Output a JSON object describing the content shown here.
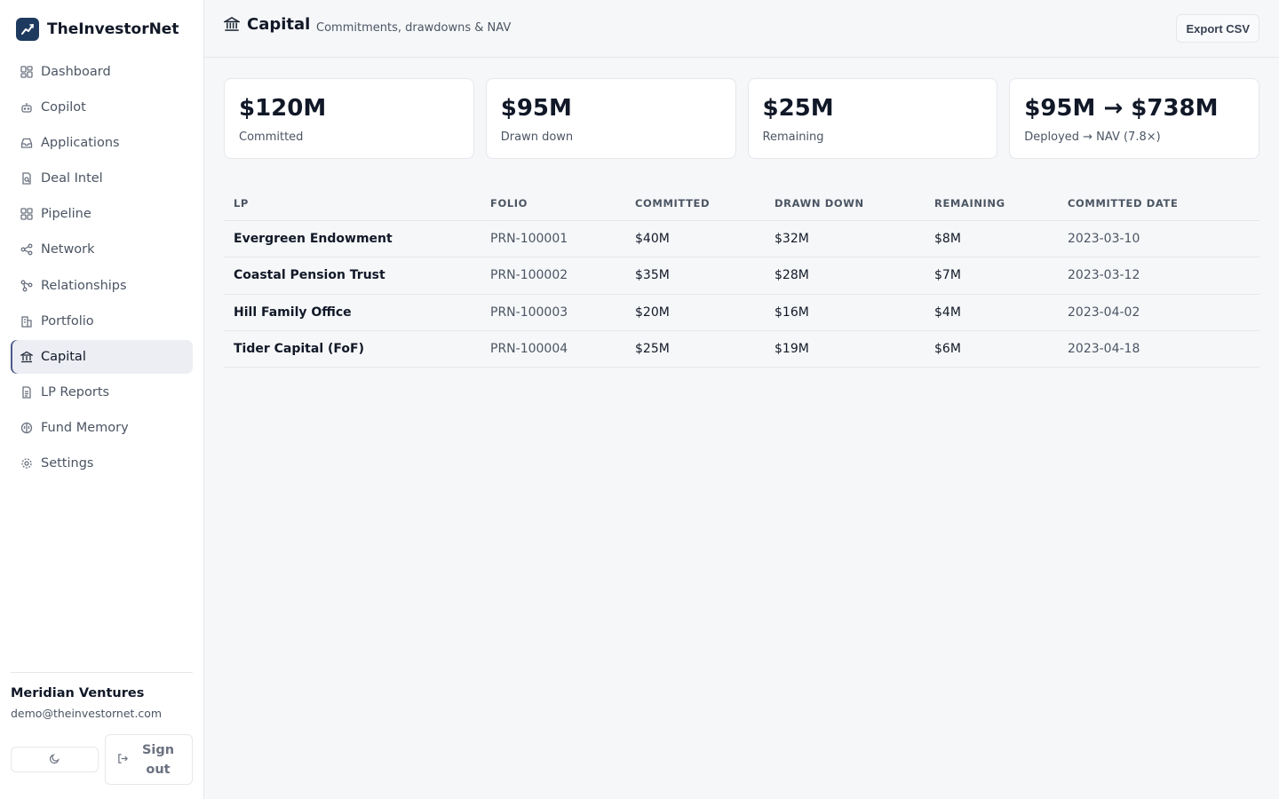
{
  "brand": {
    "name": "TheInvestorNet"
  },
  "sidebar": {
    "items": [
      {
        "label": "Dashboard",
        "icon": "dashboard-icon"
      },
      {
        "label": "Copilot",
        "icon": "robot-icon"
      },
      {
        "label": "Applications",
        "icon": "inbox-icon"
      },
      {
        "label": "Deal Intel",
        "icon": "document-search-icon"
      },
      {
        "label": "Pipeline",
        "icon": "grid-icon"
      },
      {
        "label": "Network",
        "icon": "share-icon"
      },
      {
        "label": "Relationships",
        "icon": "nodes-icon"
      },
      {
        "label": "Portfolio",
        "icon": "buildings-icon"
      },
      {
        "label": "Capital",
        "icon": "bank-icon",
        "active": true
      },
      {
        "label": "LP Reports",
        "icon": "file-text-icon"
      },
      {
        "label": "Fund Memory",
        "icon": "brain-icon"
      },
      {
        "label": "Settings",
        "icon": "gear-icon"
      }
    ],
    "footer": {
      "org_name": "Meridian Ventures",
      "email": "demo@theinvestornet.com",
      "signout_label": "Sign out"
    }
  },
  "header": {
    "title": "Capital",
    "subtitle": "Commitments, drawdowns & NAV",
    "export_label": "Export CSV"
  },
  "stats": [
    {
      "value": "$120M",
      "label": "Committed"
    },
    {
      "value": "$95M",
      "label": "Drawn down"
    },
    {
      "value": "$25M",
      "label": "Remaining"
    },
    {
      "value": "$95M → $738M",
      "label": "Deployed → NAV (7.8×)"
    }
  ],
  "table": {
    "columns": [
      "LP",
      "FOLIO",
      "COMMITTED",
      "DRAWN DOWN",
      "REMAINING",
      "COMMITTED DATE"
    ],
    "rows": [
      {
        "lp": "Evergreen Endowment",
        "folio": "PRN-100001",
        "committed": "$40M",
        "drawn": "$32M",
        "remaining": "$8M",
        "date": "2023-03-10"
      },
      {
        "lp": "Coastal Pension Trust",
        "folio": "PRN-100002",
        "committed": "$35M",
        "drawn": "$28M",
        "remaining": "$7M",
        "date": "2023-03-12"
      },
      {
        "lp": "Hill Family Office",
        "folio": "PRN-100003",
        "committed": "$20M",
        "drawn": "$16M",
        "remaining": "$4M",
        "date": "2023-04-02"
      },
      {
        "lp": "Tider Capital (FoF)",
        "folio": "PRN-100004",
        "committed": "$25M",
        "drawn": "$19M",
        "remaining": "$6M",
        "date": "2023-04-18"
      }
    ]
  },
  "colors": {
    "accent": "#4b5a8a",
    "brand_logo": "#1e3a5f"
  }
}
